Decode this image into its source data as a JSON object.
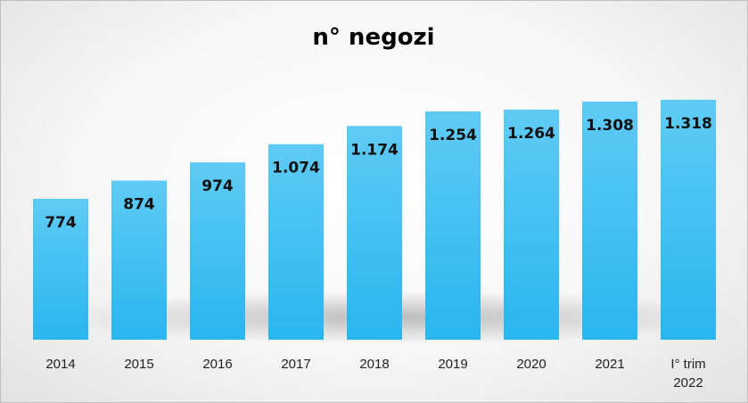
{
  "chart_data": {
    "type": "bar",
    "title": "n° negozi",
    "xlabel": "",
    "ylabel": "",
    "categories": [
      "2014",
      "2015",
      "2016",
      "2017",
      "2018",
      "2019",
      "2020",
      "2021",
      "I° trim 2022"
    ],
    "values": [
      774,
      874,
      974,
      1074,
      1174,
      1254,
      1264,
      1308,
      1318
    ],
    "value_labels": [
      "774",
      "874",
      "974",
      "1.074",
      "1.174",
      "1.254",
      "1.264",
      "1.308",
      "1.318"
    ],
    "ylim": [
      0,
      1430
    ],
    "grid": false,
    "legend": "none",
    "bar_color_top": "#5fcbf4",
    "bar_color_bottom": "#29b6ef"
  }
}
